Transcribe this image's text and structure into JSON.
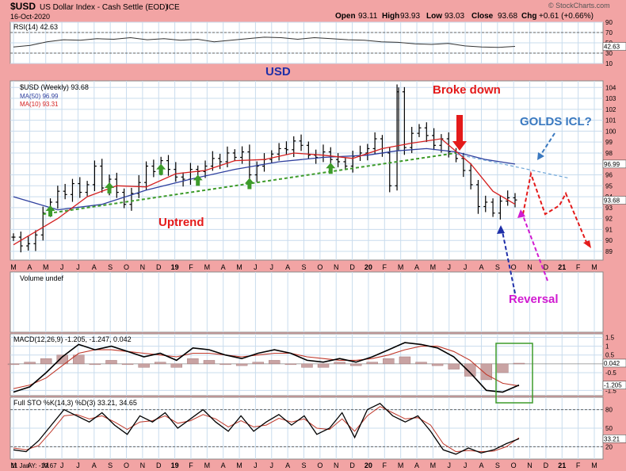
{
  "header": {
    "symbol": "$USD",
    "name": "US Dollar Index - Cash Settle (EOD)",
    "exchange": "ICE",
    "date": "16-Oct-2020",
    "open_label": "Open",
    "open": "93.11",
    "high_label": "High",
    "high": "93.93",
    "low_label": "Low",
    "low": "93.03",
    "close_label": "Close",
    "close": "93.68",
    "chg_label": "Chg",
    "chg": "+0.61 (+0.66%)",
    "watermark": "© StockCharts.com"
  },
  "footer": {
    "range_label": "11 Jan Y: -10.67"
  },
  "colors": {
    "bg": "#f2a4a4",
    "panel": "#ffffff",
    "grid": "#c9dced",
    "price": "#000000",
    "ma50": "#2e3f9e",
    "ma10": "#d42020",
    "annot_red": "#e41a1a",
    "annot_blue": "#3a79c0",
    "annot_magenta": "#d11ad1",
    "trend_green": "#3d9b2a",
    "volume": "#b07a7a"
  },
  "chart_data": [
    {
      "panel": "rsi",
      "type": "line",
      "title": "RSI(14) 42.63",
      "ylim": [
        10,
        90
      ],
      "yticks": [
        90,
        70,
        50,
        30,
        10
      ],
      "levels": [
        70,
        30
      ],
      "last_value_label": "42.63",
      "series": [
        {
          "name": "RSI(14)",
          "values": [
            42,
            45,
            52,
            56,
            55,
            58,
            57,
            60,
            56,
            58,
            55,
            57,
            52,
            55,
            58,
            61,
            60,
            57,
            60,
            58,
            56,
            55,
            52,
            51,
            48,
            47,
            49,
            44,
            42,
            41,
            43
          ]
        }
      ]
    },
    {
      "panel": "price",
      "type": "ohlc",
      "title": "$USD (Weekly) 93.68",
      "ylim": [
        88.2,
        104.6
      ],
      "yticks": [
        104,
        103,
        102,
        101,
        100,
        99,
        98,
        97,
        96,
        95,
        94,
        93,
        92,
        91,
        90,
        89
      ],
      "x_labels": [
        "M",
        "A",
        "M",
        "J",
        "J",
        "A",
        "S",
        "O",
        "N",
        "D",
        "19",
        "F",
        "M",
        "A",
        "M",
        "J",
        "J",
        "A",
        "S",
        "O",
        "N",
        "D",
        "20",
        "F",
        "M",
        "A",
        "M",
        "J",
        "J",
        "A",
        "S",
        "O",
        "N",
        "D",
        "21",
        "F",
        "M"
      ],
      "last_value_labels": [
        "96.99",
        "93.68"
      ],
      "price_points": [
        [
          0,
          90.3
        ],
        [
          1,
          89.5
        ],
        [
          2,
          89.7
        ],
        [
          3,
          90.5
        ],
        [
          4,
          92.5
        ],
        [
          5,
          93.5
        ],
        [
          6,
          94.5
        ],
        [
          7,
          94.2
        ],
        [
          8,
          95.2
        ],
        [
          9,
          94.4
        ],
        [
          10,
          95.1
        ],
        [
          11,
          96.8
        ],
        [
          12,
          94.8
        ],
        [
          13,
          95.6
        ],
        [
          14,
          94.4
        ],
        [
          15,
          93.3
        ],
        [
          16,
          94.3
        ],
        [
          17,
          95.3
        ],
        [
          18,
          96.8
        ],
        [
          19,
          96.3
        ],
        [
          20,
          97.3
        ],
        [
          21,
          96.5
        ],
        [
          22,
          95.8
        ],
        [
          23,
          95.6
        ],
        [
          24,
          96.5
        ],
        [
          25,
          96.3
        ],
        [
          26,
          96.8
        ],
        [
          27,
          97.5
        ],
        [
          28,
          97.2
        ],
        [
          29,
          98.0
        ],
        [
          30,
          97.6
        ],
        [
          31,
          98.1
        ],
        [
          32,
          96.0
        ],
        [
          33,
          96.8
        ],
        [
          34,
          97.4
        ],
        [
          35,
          97.9
        ],
        [
          36,
          98.4
        ],
        [
          37,
          98.3
        ],
        [
          38,
          99.1
        ],
        [
          39,
          98.7
        ],
        [
          40,
          97.8
        ],
        [
          41,
          97.6
        ],
        [
          42,
          98.1
        ],
        [
          43,
          97.4
        ],
        [
          44,
          97.2
        ],
        [
          45,
          96.8
        ],
        [
          46,
          97.7
        ],
        [
          47,
          98.0
        ],
        [
          48,
          98.4
        ],
        [
          49,
          99.3
        ],
        [
          50,
          98.0
        ],
        [
          51,
          95.0
        ],
        [
          52,
          103.6
        ],
        [
          53,
          98.5
        ],
        [
          54,
          99.8
        ],
        [
          55,
          100.3
        ],
        [
          56,
          99.6
        ],
        [
          57,
          98.7
        ],
        [
          58,
          99.3
        ],
        [
          59,
          98.1
        ],
        [
          60,
          97.5
        ],
        [
          61,
          96.4
        ],
        [
          62,
          95.1
        ],
        [
          63,
          93.1
        ],
        [
          64,
          93.5
        ],
        [
          65,
          92.5
        ],
        [
          66,
          93.6
        ],
        [
          67,
          93.9
        ],
        [
          68,
          93.7
        ]
      ],
      "series": [
        {
          "name": "MA(50) 96.99",
          "type": "line",
          "points": [
            [
              0,
              94.0
            ],
            [
              6,
              92.8
            ],
            [
              12,
              93.3
            ],
            [
              18,
              94.6
            ],
            [
              24,
              95.6
            ],
            [
              30,
              96.5
            ],
            [
              36,
              97.2
            ],
            [
              42,
              97.6
            ],
            [
              48,
              97.8
            ],
            [
              52,
              98.2
            ],
            [
              56,
              98.4
            ],
            [
              60,
              98.1
            ],
            [
              64,
              97.4
            ],
            [
              68,
              96.99
            ]
          ]
        },
        {
          "name": "MA(10) 93.31",
          "type": "line",
          "points": [
            [
              0,
              89.6
            ],
            [
              6,
              92.0
            ],
            [
              10,
              94.0
            ],
            [
              14,
              95.0
            ],
            [
              18,
              94.9
            ],
            [
              22,
              96.1
            ],
            [
              26,
              96.4
            ],
            [
              30,
              97.3
            ],
            [
              34,
              97.4
            ],
            [
              38,
              98.0
            ],
            [
              42,
              97.8
            ],
            [
              46,
              97.5
            ],
            [
              50,
              98.4
            ],
            [
              54,
              98.9
            ],
            [
              58,
              99.3
            ],
            [
              62,
              97.0
            ],
            [
              65,
              94.5
            ],
            [
              68,
              93.31
            ]
          ]
        }
      ],
      "annotations": {
        "headline": "USD",
        "broke_down": "Broke down",
        "golds_icl": "GOLDS ICL?",
        "uptrend": "Uptrend",
        "reversal": "Reversal"
      }
    },
    {
      "panel": "volume",
      "type": "bar",
      "title": "Volume undef"
    },
    {
      "panel": "macd",
      "type": "line",
      "title": "MACD(12,26,9) -1.205, -1.247, 0.042",
      "ylim": [
        -1.8,
        1.7
      ],
      "yticks": [
        1.5,
        1.0,
        0.5,
        -0.5,
        -1.5
      ],
      "last_value_labels": [
        "0.042",
        "-1.205"
      ],
      "series": [
        {
          "name": "MACD",
          "values": [
            -1.6,
            -1.3,
            -0.5,
            0.4,
            1.1,
            0.8,
            1.0,
            0.7,
            0.4,
            0.6,
            0.2,
            0.9,
            0.8,
            0.5,
            0.3,
            0.6,
            0.8,
            0.6,
            0.2,
            0.1,
            0.3,
            0.1,
            0.4,
            0.8,
            1.2,
            1.1,
            0.9,
            0.4,
            -0.5,
            -1.5,
            -1.6,
            -1.2
          ]
        },
        {
          "name": "Signal",
          "values": [
            -1.4,
            -1.2,
            -0.8,
            -0.1,
            0.6,
            0.8,
            0.8,
            0.7,
            0.6,
            0.5,
            0.4,
            0.6,
            0.6,
            0.5,
            0.4,
            0.5,
            0.6,
            0.6,
            0.4,
            0.3,
            0.2,
            0.2,
            0.3,
            0.5,
            0.8,
            1.0,
            1.0,
            0.7,
            0.2,
            -0.6,
            -1.1,
            -1.25
          ]
        },
        {
          "name": "Histogram",
          "values": [
            0.0,
            0.1,
            0.3,
            0.5,
            0.5,
            0.0,
            0.2,
            0.0,
            -0.2,
            0.1,
            -0.2,
            0.3,
            0.2,
            0.0,
            -0.1,
            0.1,
            0.2,
            0.0,
            -0.2,
            -0.2,
            0.1,
            -0.1,
            0.1,
            0.3,
            0.4,
            0.1,
            -0.1,
            -0.3,
            -0.7,
            -0.9,
            -0.5,
            0.04
          ]
        }
      ]
    },
    {
      "panel": "sto",
      "type": "line",
      "title": "Full STO %K(14,3) %D(3) 33.21, 34.65",
      "ylim": [
        0,
        100
      ],
      "yticks": [
        80,
        50,
        20
      ],
      "levels": [
        80,
        20
      ],
      "last_value_label": "33.21",
      "series": [
        {
          "name": "%K",
          "values": [
            15,
            12,
            30,
            55,
            80,
            70,
            60,
            75,
            55,
            40,
            70,
            60,
            75,
            50,
            65,
            80,
            60,
            45,
            70,
            45,
            60,
            72,
            55,
            70,
            40,
            50,
            75,
            35,
            80,
            90,
            70,
            60,
            70,
            45,
            15,
            8,
            18,
            10,
            15,
            25,
            33
          ]
        },
        {
          "name": "%D",
          "values": [
            18,
            15,
            22,
            45,
            70,
            72,
            65,
            70,
            60,
            48,
            60,
            62,
            70,
            58,
            62,
            72,
            65,
            52,
            62,
            52,
            55,
            66,
            60,
            65,
            50,
            48,
            65,
            45,
            70,
            85,
            75,
            65,
            67,
            55,
            25,
            12,
            14,
            12,
            13,
            20,
            34.65
          ]
        }
      ]
    }
  ]
}
